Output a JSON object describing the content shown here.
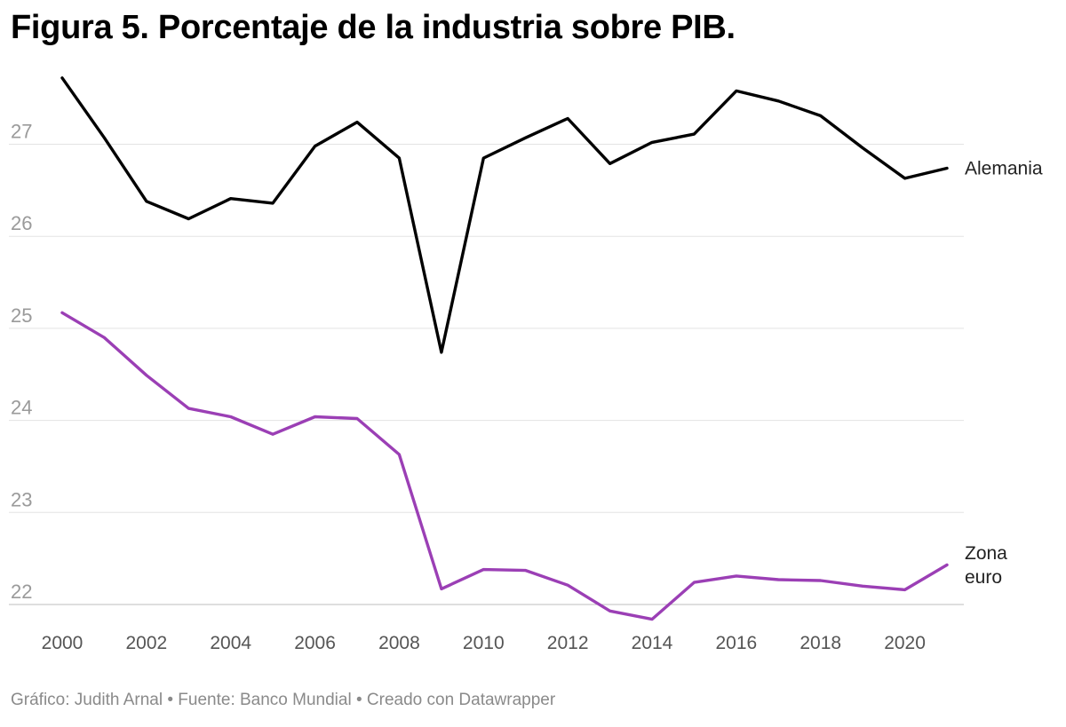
{
  "chart_data": {
    "type": "line",
    "title": "Figura 5. Porcentaje de la industria sobre PIB.",
    "xlabel": "",
    "ylabel": "",
    "x": [
      2000,
      2001,
      2002,
      2003,
      2004,
      2005,
      2006,
      2007,
      2008,
      2009,
      2010,
      2011,
      2012,
      2013,
      2014,
      2015,
      2016,
      2017,
      2018,
      2019,
      2020,
      2021
    ],
    "xticks": [
      "2000",
      "2002",
      "2004",
      "2006",
      "2008",
      "2010",
      "2012",
      "2014",
      "2016",
      "2018",
      "2020"
    ],
    "yticks": [
      "22",
      "23",
      "24",
      "25",
      "26",
      "27"
    ],
    "xlim": [
      2000,
      2021
    ],
    "ylim": [
      22,
      27.7
    ],
    "grid": "horizontal",
    "series": [
      {
        "name": "Alemania",
        "label_lines": [
          "Alemania"
        ],
        "color": "#000000",
        "values": [
          27.72,
          27.07,
          26.38,
          26.19,
          26.41,
          26.36,
          26.98,
          27.24,
          26.85,
          24.74,
          26.85,
          27.07,
          27.28,
          26.79,
          27.02,
          27.11,
          27.58,
          27.47,
          27.31,
          26.96,
          26.63,
          26.74
        ]
      },
      {
        "name": "Zona euro",
        "label_lines": [
          "Zona",
          "euro"
        ],
        "color": "#9b3fb5",
        "values": [
          25.17,
          24.9,
          24.49,
          24.13,
          24.04,
          23.85,
          24.04,
          24.02,
          23.63,
          22.17,
          22.38,
          22.37,
          22.21,
          21.93,
          21.84,
          22.24,
          22.31,
          22.27,
          22.26,
          22.2,
          22.16,
          22.43
        ]
      }
    ]
  },
  "footer": "Gráfico: Judith Arnal • Fuente: Banco Mundial • Creado con Datawrapper"
}
